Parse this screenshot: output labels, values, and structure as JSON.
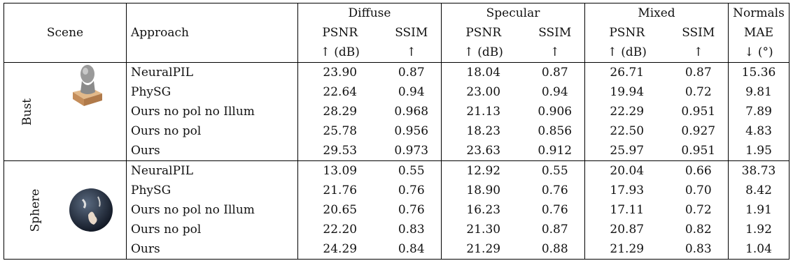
{
  "header": {
    "scene": "Scene",
    "approach": "Approach",
    "groups": [
      "Diffuse",
      "Specular",
      "Mixed",
      "Normals"
    ],
    "metrics": [
      "PSNR",
      "SSIM",
      "PSNR",
      "SSIM",
      "PSNR",
      "SSIM",
      "MAE"
    ],
    "units": [
      "↑ (dB)",
      "↑",
      "↑ (dB)",
      "↑",
      "↑ (dB)",
      "↑",
      "↓ (°)"
    ]
  },
  "scenes": [
    {
      "name": "Bust",
      "rows": [
        {
          "approach": "NeuralPIL",
          "values": [
            "23.90",
            "0.87",
            "18.04",
            "0.87",
            "26.71",
            "0.87",
            "15.36"
          ]
        },
        {
          "approach": "PhySG",
          "values": [
            "22.64",
            "0.94",
            "23.00",
            "0.94",
            "19.94",
            "0.72",
            "9.81"
          ]
        },
        {
          "approach": "Ours no pol no Illum",
          "values": [
            "28.29",
            "0.968",
            "21.13",
            "0.906",
            "22.29",
            "0.951",
            "7.89"
          ]
        },
        {
          "approach": "Ours no pol",
          "values": [
            "25.78",
            "0.956",
            "18.23",
            "0.856",
            "22.50",
            "0.927",
            "4.83"
          ]
        },
        {
          "approach": "Ours",
          "values": [
            "29.53",
            "0.973",
            "23.63",
            "0.912",
            "25.97",
            "0.951",
            "1.95"
          ]
        }
      ]
    },
    {
      "name": "Sphere",
      "rows": [
        {
          "approach": "NeuralPIL",
          "values": [
            "13.09",
            "0.55",
            "12.92",
            "0.55",
            "20.04",
            "0.66",
            "38.73"
          ]
        },
        {
          "approach": "PhySG",
          "values": [
            "21.76",
            "0.76",
            "18.90",
            "0.76",
            "17.93",
            "0.70",
            "8.42"
          ]
        },
        {
          "approach": "Ours no pol no Illum",
          "values": [
            "20.65",
            "0.76",
            "16.23",
            "0.76",
            "17.11",
            "0.72",
            "1.91"
          ]
        },
        {
          "approach": "Ours no pol",
          "values": [
            "22.20",
            "0.83",
            "21.30",
            "0.87",
            "20.87",
            "0.82",
            "1.92"
          ]
        },
        {
          "approach": "Ours",
          "values": [
            "24.29",
            "0.84",
            "21.29",
            "0.88",
            "21.29",
            "0.83",
            "1.04"
          ]
        }
      ]
    }
  ]
}
